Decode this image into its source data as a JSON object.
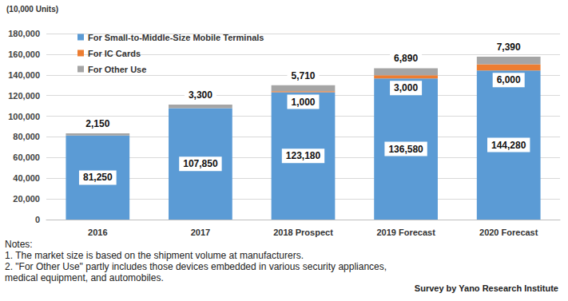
{
  "chart_data": {
    "type": "bar",
    "y_label": "(10,000 Units)",
    "categories": [
      "2016",
      "2017",
      "2018 Prospect",
      "2019 Forecast",
      "2020 Forecast"
    ],
    "series": [
      {
        "name": "For Small-to-Middle-Size Mobile Terminals",
        "color": "#5b9bd5",
        "values": [
          81250,
          107850,
          123180,
          136580,
          144280
        ],
        "value_labels": [
          "81,250",
          "107,850",
          "123,180",
          "136,580",
          "144,280"
        ]
      },
      {
        "name": "For IC Cards",
        "color": "#ed7d31",
        "values": [
          null,
          null,
          1000,
          3000,
          6000
        ],
        "value_labels": [
          null,
          null,
          "1,000",
          "3,000",
          "6,000"
        ]
      },
      {
        "name": "For Other Use",
        "color": "#a5a5a5",
        "values": [
          2150,
          3300,
          5710,
          6890,
          7390
        ],
        "value_labels": [
          "2,150",
          "3,300",
          "5,710",
          "6,890",
          "7,390"
        ]
      }
    ],
    "ylim": [
      0,
      180000
    ],
    "yticks": [
      0,
      {
        "value": 20000,
        "label": "20,000"
      },
      {
        "value": 40000,
        "label": "40,000"
      },
      {
        "value": 60000,
        "label": "60,000"
      },
      {
        "value": 80000,
        "label": "80,000"
      },
      {
        "value": 100000,
        "label": "100,000"
      },
      {
        "value": 120000,
        "label": "120,000"
      },
      {
        "value": 140000,
        "label": "140,000"
      },
      {
        "value": 160000,
        "label": "160,000"
      },
      {
        "value": 180000,
        "label": "180,000"
      }
    ],
    "grid": true,
    "legend": "top-left",
    "stacked": true,
    "data_labels": true,
    "notes": [
      "Notes:",
      "1. The market size is based on the shipment volume at manufacturers.",
      "2. \"For Other Use\" partly includes those devices embedded in various security appliances, medical equipment, and automobiles."
    ],
    "source": "Survey by Yano Research Institute"
  }
}
